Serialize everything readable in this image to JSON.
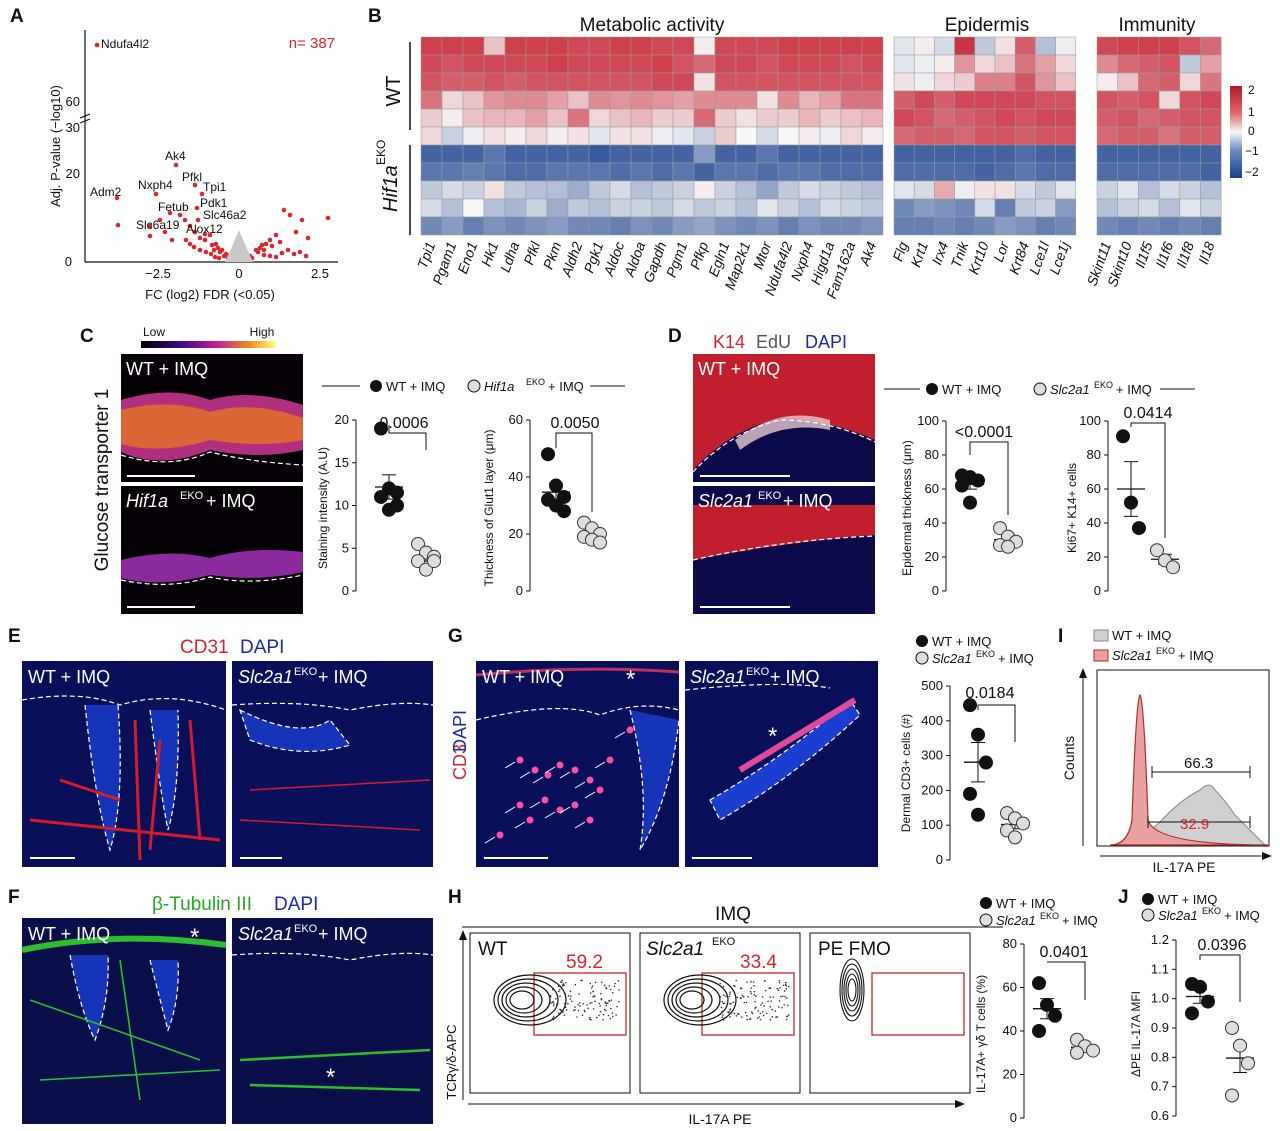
{
  "panels": {
    "A": {
      "label": "A",
      "n_label": "n= 387",
      "ylabel": "Adj. P-value (−log10)",
      "xlabel": "FC (log2) FDR (<0.05)",
      "yticks": [
        "0",
        "20",
        "30",
        "60"
      ],
      "xticks": [
        "−2.5",
        "0",
        "2.5"
      ],
      "gene_labels": [
        "Ndufa4l2",
        "Ak4",
        "Pfkl",
        "Tpi1",
        "Nxph4",
        "Pdk1",
        "Adm2",
        "Fetub",
        "Slc46a2",
        "Slc6a19",
        "Alox12"
      ]
    },
    "B": {
      "label": "B",
      "groups": [
        "Metabolic activity",
        "Epidermis",
        "Immunity"
      ],
      "row_labels": [
        "WT",
        "Hif1a",
        "EKO"
      ],
      "genes_metabolic": [
        "Tpi1",
        "Pgam1",
        "Eno1",
        "Hk1",
        "Ldha",
        "Pfkl",
        "Pkm",
        "Aldh2",
        "Pgk1",
        "Aldoc",
        "Aldoa",
        "Gapdh",
        "Pgm1",
        "Pfkp",
        "Egln1",
        "Map2k1",
        "Mtor",
        "Ndufa4l2",
        "Nxph4",
        "Higd1a",
        "Fam162a",
        "Ak4"
      ],
      "genes_epidermis": [
        "Flg",
        "Krt1",
        "Irx4",
        "Tnik",
        "Krt10",
        "Lor",
        "Krt84",
        "Lce1l",
        "Lce1j"
      ],
      "genes_immunity": [
        "Skint11",
        "Skint10",
        "Il1f5",
        "Il1f6",
        "Il1f8",
        "Il18"
      ],
      "colorbar_ticks": [
        "2",
        "1",
        "0",
        "−1",
        "−2"
      ]
    },
    "C": {
      "label": "C",
      "scale_low": "Low",
      "scale_high": "High",
      "image_labels": [
        "WT  + IMQ",
        "Hif1a",
        "EKO",
        " + IMQ"
      ],
      "side_label": "Glucose transporter 1",
      "legend": [
        "WT + IMQ",
        "Hif1a",
        "EKO",
        "+ IMQ"
      ],
      "plot1": {
        "ylabel": "Staining intensity (A.U)",
        "pvalue": "0.0006",
        "yticks": [
          "0",
          "5",
          "10",
          "15",
          "20"
        ]
      },
      "plot2": {
        "ylabel": "Thickness of Glut1 layer (μm)",
        "pvalue": "0.0050",
        "yticks": [
          "0",
          "20",
          "40",
          "60"
        ]
      }
    },
    "D": {
      "label": "D",
      "stain": [
        "K14",
        "EdU",
        "DAPI"
      ],
      "image_labels": [
        "WT  + IMQ",
        "Slc2a1",
        "EKO",
        " + IMQ"
      ],
      "legend": [
        "WT + IMQ",
        "Slc2a1",
        "EKO",
        "+ IMQ"
      ],
      "plot1": {
        "ylabel": "Epidermal thickness (μm)",
        "pvalue": "<0.0001",
        "yticks": [
          "0",
          "20",
          "40",
          "60",
          "80",
          "100"
        ]
      },
      "plot2": {
        "ylabel": "Ki67+ K14+ cells",
        "pvalue": "0.0414",
        "yticks": [
          "0",
          "20",
          "40",
          "60",
          "80",
          "100"
        ]
      }
    },
    "E": {
      "label": "E",
      "stain": [
        "CD31",
        "DAPI"
      ],
      "image_labels": [
        "WT  + IMQ",
        "Slc2a1",
        "EKO",
        " + IMQ"
      ]
    },
    "F": {
      "label": "F",
      "stain": [
        "β-Tubulin III",
        "DAPI"
      ],
      "image_labels": [
        "WT  + IMQ",
        "Slc2a1",
        "EKO",
        " + IMQ"
      ],
      "asterisk": "*"
    },
    "G": {
      "label": "G",
      "stain": [
        "CD3",
        "DAPI"
      ],
      "image_labels": [
        "WT  + IMQ",
        "Slc2a1",
        "EKO",
        " + IMQ"
      ],
      "asterisk": "*",
      "legend": [
        "WT + IMQ",
        "Slc2a1",
        "EKO",
        "+ IMQ"
      ],
      "plot": {
        "ylabel": "Dermal CD3+ cells (#)",
        "pvalue": "0.0184",
        "yticks": [
          "0",
          "100",
          "200",
          "300",
          "400",
          "500"
        ]
      }
    },
    "H": {
      "label": "H",
      "title": "IMQ",
      "flow_titles": [
        "WT",
        "Slc2a1",
        "EKO",
        "PE FMO"
      ],
      "gate_values": [
        "59.2",
        "33.4"
      ],
      "yaxis": "TCRγ/δ-APC",
      "xaxis": "IL-17A PE",
      "legend": [
        "WT + IMQ",
        "Slc2a1",
        "EKO",
        "+ IMQ"
      ],
      "plot": {
        "ylabel": "IL-17A+ γδ T cells (%)",
        "pvalue": "0.0401",
        "yticks": [
          "0",
          "20",
          "40",
          "60",
          "80"
        ]
      }
    },
    "I": {
      "label": "I",
      "legend": [
        "WT + IMQ",
        "Slc2a1",
        "EKO",
        "+ IMQ"
      ],
      "values": [
        "66.3",
        "32.9"
      ],
      "ylabel": "Counts",
      "xlabel": "IL-17A PE"
    },
    "J": {
      "label": "J",
      "legend": [
        "WT + IMQ",
        "Slc2a1",
        "EKO",
        "+ IMQ"
      ],
      "plot": {
        "ylabel": "ΔPE IL-17A MFI",
        "pvalue": "0.0396",
        "yticks": [
          "0.6",
          "0.7",
          "0.8",
          "0.9",
          "1.0",
          "1.1",
          "1.2"
        ]
      }
    }
  },
  "chart_data": [
    {
      "type": "scatter",
      "panel": "C-1",
      "series": [
        {
          "name": "WT + IMQ",
          "values": [
            19,
            12,
            11.5,
            11,
            9.5,
            10
          ]
        },
        {
          "name": "Hif1aEKO + IMQ",
          "values": [
            5.5,
            4.5,
            4,
            3.5,
            2.5,
            3.5
          ]
        }
      ],
      "ylim": [
        0,
        20
      ]
    },
    {
      "type": "scatter",
      "panel": "C-2",
      "series": [
        {
          "name": "WT + IMQ",
          "values": [
            48,
            37,
            33,
            32,
            30,
            28
          ]
        },
        {
          "name": "Hif1aEKO + IMQ",
          "values": [
            24,
            22,
            20,
            19,
            18,
            17
          ]
        }
      ],
      "ylim": [
        0,
        60
      ]
    },
    {
      "type": "scatter",
      "panel": "D-1",
      "series": [
        {
          "name": "WT + IMQ",
          "values": [
            68,
            67,
            65,
            62,
            52
          ]
        },
        {
          "name": "Slc2a1EKO + IMQ",
          "values": [
            37,
            32,
            29,
            27,
            26
          ]
        }
      ],
      "ylim": [
        0,
        100
      ]
    },
    {
      "type": "scatter",
      "panel": "D-2",
      "series": [
        {
          "name": "WT + IMQ",
          "values": [
            91,
            52,
            37
          ]
        },
        {
          "name": "Slc2a1EKO + IMQ",
          "values": [
            24,
            18,
            14
          ]
        }
      ],
      "ylim": [
        0,
        100
      ]
    },
    {
      "type": "scatter",
      "panel": "G",
      "series": [
        {
          "name": "WT + IMQ",
          "values": [
            445,
            360,
            280,
            190,
            130
          ]
        },
        {
          "name": "Slc2a1EKO + IMQ",
          "values": [
            135,
            120,
            105,
            85,
            65
          ]
        }
      ],
      "ylim": [
        0,
        500
      ]
    },
    {
      "type": "scatter",
      "panel": "H",
      "series": [
        {
          "name": "WT + IMQ",
          "values": [
            62,
            52,
            47,
            40
          ]
        },
        {
          "name": "Slc2a1EKO + IMQ",
          "values": [
            36,
            33,
            31,
            30
          ]
        }
      ],
      "ylim": [
        0,
        80
      ]
    },
    {
      "type": "scatter",
      "panel": "J",
      "series": [
        {
          "name": "WT + IMQ",
          "values": [
            1.05,
            1.04,
            0.99,
            0.95
          ]
        },
        {
          "name": "Slc2a1EKO + IMQ",
          "values": [
            0.9,
            0.84,
            0.78,
            0.67
          ]
        }
      ],
      "ylim": [
        0.6,
        1.2
      ]
    }
  ],
  "heatmap_rows": {
    "metabolic": [
      [
        1.7,
        1.7,
        1.7,
        0.5,
        1.7,
        1.7,
        1.7,
        1.6,
        1.6,
        1.7,
        1.7,
        1.6,
        1.6,
        0.1,
        1.6,
        1.6,
        1.6,
        1.7,
        1.7,
        1.7,
        1.7,
        1.7
      ],
      [
        1.6,
        1.5,
        1.6,
        1.6,
        1.6,
        1.6,
        1.7,
        1.6,
        1.6,
        1.6,
        1.6,
        1.7,
        1.5,
        1.3,
        1.6,
        1.6,
        1.5,
        1.6,
        1.6,
        1.6,
        1.5,
        1.6
      ],
      [
        1.5,
        1.4,
        1.4,
        1.5,
        1.4,
        1.5,
        1.5,
        1.5,
        1.5,
        1.5,
        1.5,
        1.6,
        1.6,
        0.2,
        1.5,
        1.5,
        1.5,
        1.5,
        1.5,
        1.5,
        1.5,
        1.5
      ],
      [
        1.2,
        0.3,
        0.5,
        0.9,
        1.0,
        1.0,
        0.8,
        0.5,
        1.0,
        0.9,
        1.0,
        0.9,
        0.8,
        1.0,
        1.0,
        1.0,
        0.2,
        1.0,
        0.6,
        0.8,
        1.2,
        1.2
      ],
      [
        0.4,
        0.1,
        0.5,
        0.6,
        0.6,
        0.8,
        0.5,
        1.2,
        0.3,
        0.5,
        0.6,
        0.4,
        0.4,
        1.3,
        0.4,
        0.2,
        0.4,
        0.4,
        0.6,
        0.4,
        0.5,
        0.6
      ],
      [
        0.3,
        -0.4,
        -0.1,
        0.2,
        0.1,
        0.3,
        0.1,
        0.2,
        -0.2,
        0.2,
        0.2,
        -0.1,
        -0.2,
        -0.4,
        0.4,
        0.0,
        -0.3,
        0.0,
        0.1,
        -0.1,
        0.3,
        0.1
      ],
      [
        -1.6,
        -1.6,
        -1.6,
        -1.4,
        -1.6,
        -1.6,
        -1.6,
        -1.6,
        -1.7,
        -1.6,
        -1.6,
        -1.6,
        -1.6,
        -1.0,
        -1.6,
        -1.6,
        -1.4,
        -1.6,
        -1.6,
        -1.6,
        -1.6,
        -1.6
      ],
      [
        -1.4,
        -1.4,
        -1.3,
        -1.4,
        -1.5,
        -1.5,
        -1.4,
        -1.4,
        -1.4,
        -1.5,
        -1.4,
        -1.5,
        -1.4,
        -1.6,
        -1.4,
        -1.4,
        -1.5,
        -1.4,
        -1.4,
        -1.5,
        -1.5,
        -1.5
      ],
      [
        -0.5,
        -0.3,
        -0.4,
        0.2,
        -0.5,
        -0.6,
        -0.6,
        -0.8,
        -0.5,
        -0.3,
        -0.6,
        -0.5,
        -0.4,
        0.1,
        -0.4,
        -0.6,
        -0.9,
        -0.5,
        -0.3,
        -0.4,
        -0.5,
        -0.6
      ],
      [
        -0.3,
        -0.6,
        0.0,
        -0.6,
        -0.7,
        -0.4,
        -0.8,
        -0.5,
        -0.6,
        -0.4,
        -0.4,
        -0.5,
        -0.3,
        -0.5,
        -0.4,
        -0.6,
        -0.2,
        -0.4,
        -0.6,
        -0.3,
        -0.4,
        -0.5
      ],
      [
        -1.2,
        -1.0,
        -1.3,
        -1.1,
        -1.2,
        -1.1,
        -1.0,
        -1.2,
        -1.2,
        -1.3,
        -1.1,
        -1.2,
        -1.0,
        -0.9,
        -1.1,
        -1.2,
        -1.1,
        -1.3,
        -1.1,
        -1.2,
        -1.2,
        -1.1
      ]
    ],
    "epidermis": [
      [
        -0.2,
        0.1,
        -0.3,
        1.8,
        -0.5,
        0.2,
        1.4,
        -0.6,
        -0.1
      ],
      [
        -0.2,
        -0.1,
        0.1,
        0.9,
        0.3,
        0.5,
        1.2,
        0.8,
        0.3
      ],
      [
        0.2,
        -0.1,
        0.3,
        0.4,
        1.1,
        1.1,
        1.5,
        0.9,
        0.5
      ],
      [
        1.4,
        1.6,
        1.4,
        1.6,
        1.6,
        1.6,
        1.6,
        1.5,
        1.5
      ],
      [
        1.6,
        1.5,
        1.3,
        1.4,
        1.5,
        1.6,
        1.5,
        1.6,
        1.6
      ],
      [
        1.3,
        1.4,
        1.4,
        1.3,
        1.5,
        1.5,
        1.4,
        1.5,
        1.5
      ],
      [
        -1.6,
        -1.6,
        -1.6,
        -1.6,
        -1.6,
        -1.6,
        -1.5,
        -1.6,
        -1.6
      ],
      [
        -1.5,
        -1.5,
        -1.5,
        -1.5,
        -1.6,
        -1.5,
        -1.4,
        -1.5,
        -1.5
      ],
      [
        -0.2,
        -0.3,
        0.7,
        -0.1,
        0.2,
        0.2,
        -0.3,
        -0.5,
        -0.2
      ],
      [
        -1.2,
        -1.0,
        -1.1,
        -1.2,
        -0.3,
        -1.3,
        -0.5,
        -0.4,
        -1.0
      ],
      [
        -1.3,
        -1.3,
        -1.2,
        -1.3,
        -1.2,
        -1.0,
        -1.1,
        -1.3,
        -1.2
      ]
    ],
    "immunity": [
      [
        1.6,
        1.7,
        1.7,
        1.7,
        1.5,
        1.3
      ],
      [
        1.0,
        1.3,
        1.4,
        1.5,
        -0.5,
        0.8
      ],
      [
        0.1,
        0.5,
        1.3,
        1.4,
        0.3,
        1.2
      ],
      [
        1.5,
        1.4,
        1.5,
        0.3,
        1.5,
        1.6
      ],
      [
        1.4,
        1.5,
        1.3,
        1.4,
        1.5,
        1.5
      ],
      [
        1.3,
        1.4,
        1.4,
        1.2,
        1.4,
        1.4
      ],
      [
        -1.6,
        -1.6,
        -1.6,
        -1.6,
        -1.6,
        -1.6
      ],
      [
        -1.5,
        -1.5,
        -1.5,
        -1.5,
        -1.5,
        -1.6
      ],
      [
        -0.4,
        -0.2,
        -0.6,
        -0.3,
        -0.4,
        -0.6
      ],
      [
        -0.6,
        -0.4,
        -0.3,
        -0.6,
        -0.2,
        -0.4
      ],
      [
        -1.2,
        -1.3,
        -1.2,
        -1.3,
        -1.2,
        -1.3
      ]
    ]
  },
  "colors": {
    "red": "#d7262b",
    "blue": "#1a4896",
    "wt_fill": "#111111",
    "ko_fill": "#cccccc"
  }
}
